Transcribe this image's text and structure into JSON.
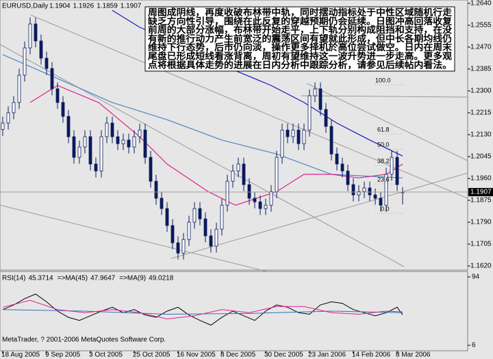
{
  "chart_data": [
    {
      "type": "candlestick",
      "title": "EURUSD,Daily",
      "last_ohlc": [
        1.1904,
        1.1926,
        1.1859,
        1.1907
      ],
      "x": [
        0,
        2,
        4,
        6,
        8,
        10,
        12,
        14,
        16,
        18,
        20,
        22,
        24,
        26,
        28,
        30,
        32,
        34,
        36,
        38,
        40,
        42,
        44,
        46,
        48,
        50,
        52,
        54,
        56,
        58,
        60,
        62,
        64,
        66,
        68,
        70,
        72,
        74,
        76,
        78,
        80,
        82,
        84,
        86,
        88,
        90,
        92,
        94,
        96,
        98,
        100,
        102,
        104,
        106,
        108,
        110,
        112,
        114,
        116,
        118,
        120,
        122,
        124,
        126,
        128,
        130,
        132,
        134,
        136,
        138,
        140,
        142,
        144,
        146
      ],
      "open": [
        1.215,
        1.2175,
        1.2215,
        1.2255,
        1.2361,
        1.2467,
        1.256,
        1.2494,
        1.2427,
        1.2387,
        1.2308,
        1.2255,
        1.2201,
        1.2122,
        1.2042,
        1.2082,
        1.2122,
        1.2016,
        1.1989,
        1.2122,
        1.2175,
        1.2122,
        1.2095,
        1.2109,
        1.2082,
        1.2122,
        1.2148,
        1.2042,
        1.1949,
        1.1883,
        1.1843,
        1.1777,
        1.171,
        1.167,
        1.1723,
        1.179,
        1.1843,
        1.1803,
        1.1737,
        1.1697,
        1.1763,
        1.1856,
        1.1949,
        1.1989,
        1.2016,
        1.1936,
        1.1883,
        1.1869,
        1.1843,
        1.1856,
        1.1909,
        1.2042,
        1.2148,
        1.2122,
        1.2148,
        1.2095,
        1.2148,
        1.2281,
        1.2308,
        1.2228,
        1.2162,
        1.2055,
        1.2016,
        1.1989,
        1.1936,
        1.1896,
        1.1909,
        1.1923,
        1.1896,
        1.1883,
        1.1856,
        1.1976,
        1.2042,
        1.1904
      ],
      "high": [
        1.22,
        1.224,
        1.228,
        1.2386,
        1.2492,
        1.2585,
        1.2585,
        1.2519,
        1.2452,
        1.2412,
        1.2333,
        1.228,
        1.2226,
        1.2147,
        1.2107,
        1.2147,
        1.2147,
        1.2041,
        1.2147,
        1.22,
        1.22,
        1.2147,
        1.2134,
        1.2134,
        1.2147,
        1.2173,
        1.2173,
        1.2067,
        1.1974,
        1.1908,
        1.1868,
        1.1802,
        1.1735,
        1.1748,
        1.1815,
        1.1868,
        1.1868,
        1.1828,
        1.1762,
        1.1788,
        1.1881,
        1.1974,
        1.2014,
        1.2041,
        1.2041,
        1.1961,
        1.1908,
        1.1894,
        1.1881,
        1.1934,
        1.2067,
        1.2173,
        1.2173,
        1.2173,
        1.2173,
        1.2173,
        1.2306,
        1.2333,
        1.2333,
        1.2253,
        1.2187,
        1.208,
        1.2041,
        1.2014,
        1.1961,
        1.1934,
        1.1948,
        1.1948,
        1.1921,
        1.1908,
        1.2001,
        1.2067,
        1.2067,
        1.1926
      ],
      "low": [
        1.2125,
        1.215,
        1.219,
        1.223,
        1.2336,
        1.2442,
        1.2469,
        1.2402,
        1.2362,
        1.2283,
        1.223,
        1.2176,
        1.2097,
        1.2017,
        1.2017,
        1.2057,
        1.1991,
        1.1964,
        1.1964,
        1.2097,
        1.2097,
        1.207,
        1.207,
        1.2057,
        1.2057,
        1.2097,
        1.2017,
        1.1924,
        1.1858,
        1.1818,
        1.1752,
        1.1685,
        1.1645,
        1.1645,
        1.1698,
        1.1765,
        1.1778,
        1.1712,
        1.1672,
        1.1672,
        1.1738,
        1.1831,
        1.1924,
        1.1964,
        1.1911,
        1.1858,
        1.1844,
        1.1818,
        1.1818,
        1.1831,
        1.1884,
        1.2017,
        1.2097,
        1.2097,
        1.207,
        1.207,
        1.2123,
        1.2256,
        1.2203,
        1.2137,
        1.203,
        1.1991,
        1.1964,
        1.1911,
        1.1871,
        1.1871,
        1.1884,
        1.1871,
        1.1858,
        1.1831,
        1.1831,
        1.1951,
        1.1911,
        1.1859
      ],
      "close": [
        1.2175,
        1.2215,
        1.2255,
        1.2361,
        1.2467,
        1.256,
        1.2494,
        1.2427,
        1.2387,
        1.2308,
        1.2255,
        1.2201,
        1.2122,
        1.2042,
        1.2082,
        1.2122,
        1.2016,
        1.1989,
        1.2122,
        1.2175,
        1.2122,
        1.2095,
        1.2109,
        1.2082,
        1.2122,
        1.2148,
        1.2042,
        1.1949,
        1.1883,
        1.1843,
        1.1777,
        1.171,
        1.167,
        1.1723,
        1.179,
        1.1843,
        1.1803,
        1.1737,
        1.1697,
        1.1763,
        1.1856,
        1.1949,
        1.1989,
        1.2016,
        1.1936,
        1.1883,
        1.1869,
        1.1843,
        1.1856,
        1.1909,
        1.2042,
        1.2148,
        1.2122,
        1.2148,
        1.2095,
        1.2148,
        1.2281,
        1.2308,
        1.2228,
        1.2162,
        1.2055,
        1.2016,
        1.1989,
        1.1936,
        1.1896,
        1.1909,
        1.1923,
        1.1896,
        1.1883,
        1.1856,
        1.1976,
        1.2042,
        1.1936,
        1.1907
      ],
      "up_color": "#ffffff",
      "down_color": "#0a1a5c",
      "candle_outline": "#0a1a5c",
      "lines": [
        {
          "color": "#1818c0",
          "x": [
            40,
            50,
            62,
            74,
            86,
            98,
            110,
            122,
            134,
            146
          ],
          "values": [
            1.2613,
            1.2547,
            1.2494,
            1.2427,
            1.2374,
            1.2321,
            1.2255,
            1.2175,
            1.2109,
            1.2047
          ]
        },
        {
          "color": "#4a86c8",
          "x": [
            0,
            20,
            40,
            60,
            80,
            100,
            120,
            146
          ],
          "values": [
            1.2441,
            1.2348,
            1.2255,
            1.2188,
            1.2109,
            1.2055,
            1.1976,
            1.1962
          ]
        },
        {
          "color": "#e0208c",
          "x": [
            10,
            20,
            35,
            50,
            60,
            75,
            85,
            100,
            110,
            120,
            130,
            140,
            146
          ],
          "values": [
            1.2255,
            1.2321,
            1.2255,
            1.2122,
            1.2016,
            1.1909,
            1.1856,
            1.1909,
            1.1976,
            1.1976,
            1.1962,
            1.1976,
            1.2016
          ]
        }
      ],
      "xlim": [
        -1,
        169.75
      ],
      "ylim": [
        1.1604,
        1.2653
      ],
      "yticks": [
        {
          "value": 1.264,
          "label": "1.2640"
        },
        1.2555,
        {
          "value": 1.247,
          "label": "1.2470"
        },
        1.2385,
        {
          "value": 1.23,
          "label": "1.2300"
        },
        1.2215,
        {
          "value": 1.213,
          "label": "1.2130"
        },
        1.2045,
        {
          "value": 1.196,
          "label": "1.1960"
        },
        1.1875,
        {
          "value": 1.179,
          "label": "1.1790"
        },
        1.1705,
        {
          "value": 1.162,
          "label": "1.1620"
        }
      ],
      "fib_labels": [
        "100.0",
        "61.8",
        "50.0",
        "38.2",
        "23.6",
        "0.0"
      ],
      "commentary": [
        "周图成阴线，再度收破布林带中轨，同时摆动指标处于中性区域随机行走",
        "缺乏方向性引导，围绕在此反复的穿越预期仍会延续。日图冲高回落收复",
        "前周的大部分涨幅，布林带开始走平，上下轨分别构成阻挡和支持，在没",
        "有新的推行动力产生前宽泛的震荡区间有望就此形成，但中长各期均线仍",
        "维持下行态势，后市仍向淡，操作更多择机於高位尝试做空。日内在周末",
        "尾盘已形成短线看涨背离，周初有望维持这一波升势进一步走高。更多观",
        "点将根据具体走势的进展在日内分析中跟踪分析，请参见后续帖内看法。"
      ]
    },
    {
      "type": "line",
      "series": [
        {
          "name": "RSI(14)",
          "color": "#000000",
          "x": [
            0,
            4,
            8,
            12,
            16,
            20,
            24,
            28,
            32,
            36,
            40,
            44,
            48,
            52,
            56,
            60,
            64,
            68,
            72,
            76,
            80,
            84,
            88,
            92,
            96,
            100,
            104,
            108,
            112,
            116,
            120,
            124,
            128,
            132,
            136,
            140,
            144,
            146
          ],
          "values": [
            52,
            58,
            66,
            72,
            62,
            50,
            42,
            38,
            44,
            50,
            55,
            48,
            52,
            45,
            42,
            50,
            55,
            45,
            38,
            32,
            42,
            50,
            44,
            38,
            50,
            58,
            55,
            48,
            46,
            58,
            62,
            60,
            52,
            48,
            44,
            48,
            55,
            45.3714
          ]
        },
        {
          "name": "=>MA(45)",
          "color": "#3070c0",
          "x": [
            0,
            30,
            60,
            90,
            120,
            146
          ],
          "values": [
            52,
            50,
            46,
            47,
            50,
            47.9647
          ]
        },
        {
          "name": "=>MA(9)",
          "color": "#e0208c",
          "x": [
            0,
            10,
            20,
            30,
            40,
            50,
            60,
            70,
            80,
            90,
            100,
            110,
            120,
            130,
            140,
            146
          ],
          "values": [
            55,
            64,
            52,
            48,
            52,
            48,
            40,
            44,
            52,
            48,
            56,
            56,
            48,
            46,
            50,
            49.0218
          ]
        }
      ],
      "xlim": [
        -1,
        169.75
      ],
      "ylim": [
        -1.04,
        101.04
      ],
      "yticks": [
        6,
        94
      ],
      "xticks": [
        {
          "value": 0,
          "label": "18 Aug 2005"
        },
        {
          "value": 16,
          "label": "9 Sep 2005"
        },
        {
          "value": 32,
          "label": "3 Oct 2005"
        },
        {
          "value": 48,
          "label": "25 Oct 2005"
        },
        {
          "value": 64,
          "label": "16 Nov 2005"
        },
        {
          "value": 80,
          "label": "8 Dec 2005"
        },
        {
          "value": 96,
          "label": "30 Dec 2005"
        },
        {
          "value": 112,
          "label": "23 Jan 2006"
        },
        {
          "value": 128,
          "label": "14 Feb 2006"
        },
        {
          "value": 144,
          "label": "8 Mar 2006"
        }
      ],
      "footnote": "MetaTrader, ? 2001-2006 MetaQuotes Software Corp."
    }
  ]
}
